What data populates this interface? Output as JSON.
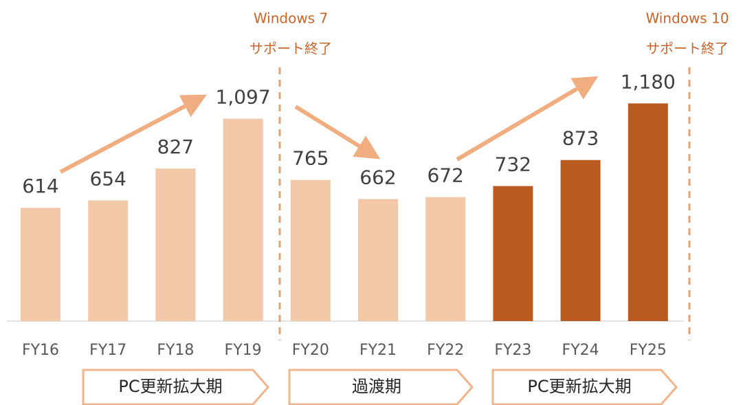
{
  "chart_data": {
    "type": "bar",
    "categories": [
      "FY16",
      "FY17",
      "FY18",
      "FY19",
      "FY20",
      "FY21",
      "FY22",
      "FY23",
      "FY24",
      "FY25"
    ],
    "values": [
      614,
      654,
      827,
      1097,
      765,
      662,
      672,
      732,
      873,
      1180
    ],
    "value_labels": [
      "614",
      "654",
      "827",
      "1,097",
      "765",
      "662",
      "672",
      "732",
      "873",
      "1,180"
    ],
    "colors": [
      "#f2c8a9",
      "#f2c8a9",
      "#f2c8a9",
      "#f2c8a9",
      "#f2c8a9",
      "#f2c8a9",
      "#f2c8a9",
      "#b95a1f",
      "#b95a1f",
      "#b95a1f"
    ],
    "ylim": [
      0,
      1200
    ],
    "annotations": [
      [
        "Windows 7",
        "サポート終了"
      ],
      [
        "Windows 10",
        "サポート終了"
      ]
    ],
    "phases": [
      "PC更新拡大期",
      "過渡期",
      "PC更新拡大期"
    ]
  }
}
